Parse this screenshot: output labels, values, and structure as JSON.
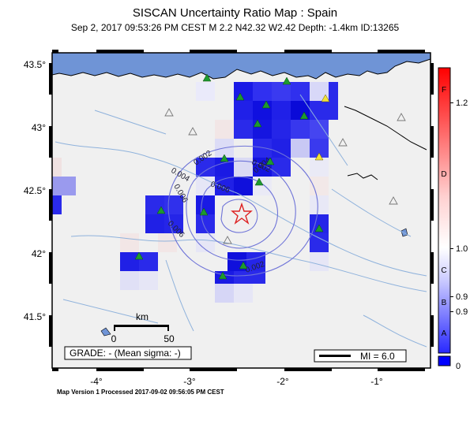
{
  "title": "SISCAN Uncertainty Ratio Map : Spain",
  "subtitle": "Sep  2, 2017 09:53:26 PM CEST   M 2.2   N42.32 W2.42   Depth: -1.4km   ID:13265",
  "footer": "Map Version 1 Processed 2017-09-02 09:56:05 PM CEST",
  "axes": {
    "lon_ticks": [
      "-4°",
      "-3°",
      "-2°",
      "-1°"
    ],
    "lat_ticks": [
      "43.5°",
      "43°",
      "42.5°",
      "42°",
      "41.5°"
    ]
  },
  "scale_bar": {
    "unit_label": "km",
    "start_label": "0",
    "end_label": "50"
  },
  "grade_box": "GRADE: - (Mean sigma: -)",
  "mi_legend": "MI = 6.0",
  "contour_labels": [
    "0.002",
    "0.002",
    "0.004",
    "0.004",
    "0.006",
    "0.006",
    "0.006",
    "0.002"
  ],
  "colorbar": {
    "grades": [
      "F",
      "D",
      "C",
      "B",
      "A"
    ],
    "values": [
      "1.2",
      "1.0",
      "0.9",
      "0.9",
      "0"
    ],
    "colors": {
      "top": "#ff0000",
      "middle": "#ffffff",
      "bottom": "#0000ff"
    }
  },
  "colors": {
    "sea": "#6f94d6",
    "land": "#f0f0f0",
    "rivers": "#8fb2dc",
    "station": "#1e9a2e",
    "epicenter": "#dd2222"
  }
}
